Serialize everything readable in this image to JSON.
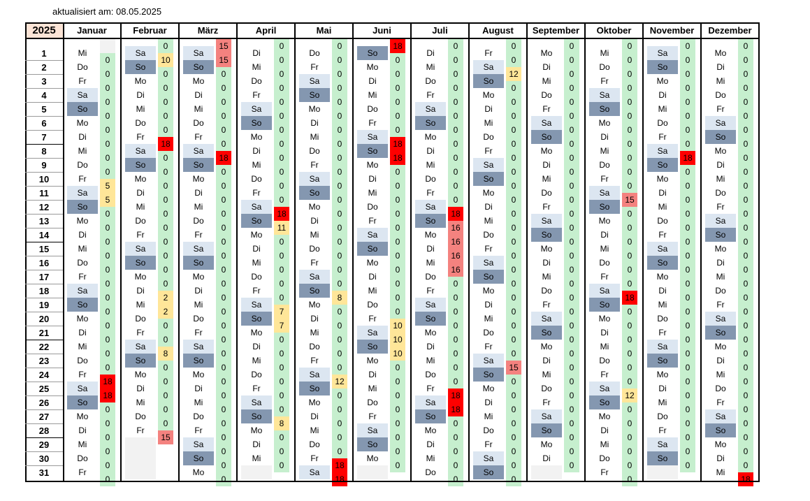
{
  "updated": "aktualisiert am: 08.05.2025",
  "year": "2025",
  "colors": {
    "zero": "#c6efce",
    "mid": "#ffe699",
    "high": "#ff0000",
    "highLight": "#f4827f",
    "sat": "#dce6f1",
    "sun": "#8497b0"
  },
  "day_numbers": [
    "1",
    "2",
    "3",
    "4",
    "5",
    "6",
    "7",
    "8",
    "9",
    "10",
    "11",
    "12",
    "13",
    "14",
    "15",
    "16",
    "17",
    "18",
    "19",
    "20",
    "21",
    "22",
    "23",
    "24",
    "25",
    "26",
    "27",
    "28",
    "29",
    "30",
    "31"
  ],
  "months": [
    {
      "name": "Januar",
      "first": 2,
      "len": 31,
      "vals": [
        null,
        "0",
        "0",
        "0",
        "0",
        "0",
        "0",
        "0",
        "0",
        "0",
        "5",
        "5",
        "0",
        "0",
        "0",
        "0",
        "0",
        "0",
        "0",
        "0",
        "0",
        "0",
        "0",
        "0",
        "18",
        "18",
        "0",
        "0",
        "0",
        "0",
        "0",
        "0"
      ]
    },
    {
      "name": "Februar",
      "first": 5,
      "len": 28,
      "vals": [
        "0",
        "10",
        "0",
        "0",
        "0",
        "0",
        "0",
        "18",
        "0",
        "0",
        "0",
        "0",
        "0",
        "0",
        "0",
        "0",
        "0",
        "0",
        "2",
        "2",
        "0",
        "0",
        "8",
        "0",
        "0",
        "0",
        "0",
        "0",
        "15"
      ]
    },
    {
      "name": "März",
      "first": 5,
      "len": 31,
      "vals": [
        "15",
        "15",
        "0",
        "0",
        "0",
        "0",
        "0",
        "0",
        "18",
        "0",
        "0",
        "0",
        "0",
        "0",
        "0",
        "0",
        "0",
        "0",
        "0",
        "0",
        "0",
        "0",
        "0",
        "0",
        "0",
        "0",
        "0",
        "0",
        "0",
        "0",
        "0",
        "0"
      ]
    },
    {
      "name": "April",
      "first": 1,
      "len": 30,
      "vals": [
        "0",
        "0",
        "0",
        "0",
        "0",
        "0",
        "0",
        "0",
        "0",
        "0",
        "0",
        "0",
        "18",
        "11",
        "0",
        "0",
        "0",
        "0",
        "0",
        "7",
        "7",
        "0",
        "0",
        "0",
        "0",
        "0",
        "0",
        "8",
        "0",
        "0",
        "0"
      ]
    },
    {
      "name": "Mai",
      "first": 3,
      "len": 31,
      "vals": [
        "0",
        "0",
        "0",
        "0",
        "0",
        "0",
        "0",
        "0",
        "0",
        "0",
        "0",
        "0",
        "0",
        "0",
        "0",
        "0",
        "0",
        "0",
        "8",
        "0",
        "0",
        "0",
        "0",
        "0",
        "12",
        "0",
        "0",
        "0",
        "0",
        "0",
        "18",
        "18"
      ]
    },
    {
      "name": "Juni",
      "first": 6,
      "len": 30,
      "vals": [
        "18",
        "0",
        "0",
        "0",
        "0",
        "0",
        "0",
        "18",
        "18",
        "0",
        "0",
        "0",
        "0",
        "0",
        "0",
        "0",
        "0",
        "0",
        "0",
        "0",
        "10",
        "10",
        "10",
        "0",
        "0",
        "0",
        "0",
        "0",
        "0",
        "0",
        "0"
      ]
    },
    {
      "name": "Juli",
      "first": 1,
      "len": 31,
      "vals": [
        "0",
        "0",
        "0",
        "0",
        "0",
        "0",
        "0",
        "0",
        "0",
        "0",
        "0",
        "0",
        "18",
        "16",
        "16",
        "16",
        "16",
        "0",
        "0",
        "0",
        "0",
        "0",
        "0",
        "0",
        "0",
        "18",
        "18",
        "0",
        "0",
        "0",
        "0",
        "0"
      ]
    },
    {
      "name": "August",
      "first": 4,
      "len": 31,
      "vals": [
        "0",
        "0",
        "12",
        "0",
        "0",
        "0",
        "0",
        "0",
        "0",
        "0",
        "0",
        "0",
        "0",
        "0",
        "0",
        "0",
        "0",
        "0",
        "0",
        "0",
        "0",
        "0",
        "0",
        "15",
        "0",
        "0",
        "0",
        "0",
        "0",
        "0",
        "0",
        "0"
      ]
    },
    {
      "name": "September",
      "first": 0,
      "len": 30,
      "vals": [
        "0",
        "0",
        "0",
        "0",
        "0",
        "0",
        "0",
        "0",
        "0",
        "0",
        "0",
        "0",
        "0",
        "0",
        "0",
        "0",
        "0",
        "0",
        "0",
        "0",
        "0",
        "0",
        "0",
        "0",
        "0",
        "0",
        "0",
        "0",
        "0",
        "0",
        "0"
      ]
    },
    {
      "name": "Oktober",
      "first": 2,
      "len": 31,
      "vals": [
        "0",
        "0",
        "0",
        "0",
        "0",
        "0",
        "0",
        "0",
        "0",
        "0",
        "0",
        "15",
        "0",
        "0",
        "0",
        "0",
        "0",
        "0",
        "18",
        "0",
        "0",
        "0",
        "0",
        "0",
        "0",
        "12",
        "0",
        "0",
        "0",
        "0",
        "0",
        "0"
      ]
    },
    {
      "name": "November",
      "first": 5,
      "len": 30,
      "vals": [
        "0",
        "0",
        "0",
        "0",
        "0",
        "0",
        "0",
        "0",
        "18",
        "0",
        "0",
        "0",
        "0",
        "0",
        "0",
        "0",
        "0",
        "0",
        "0",
        "0",
        "0",
        "0",
        "0",
        "0",
        "0",
        "0",
        "0",
        "0",
        "0",
        "0",
        "0"
      ]
    },
    {
      "name": "Dezember",
      "first": 0,
      "len": 31,
      "vals": [
        "0",
        "0",
        "0",
        "0",
        "0",
        "0",
        "0",
        "0",
        "0",
        "0",
        "0",
        "0",
        "0",
        "0",
        "0",
        "0",
        "0",
        "0",
        "0",
        "0",
        "0",
        "0",
        "0",
        "0",
        "0",
        "0",
        "0",
        "0",
        "0",
        "0",
        "0",
        "18"
      ]
    }
  ],
  "weekdays": [
    "Mo",
    "Di",
    "Mi",
    "Do",
    "Fr",
    "Sa",
    "So"
  ]
}
